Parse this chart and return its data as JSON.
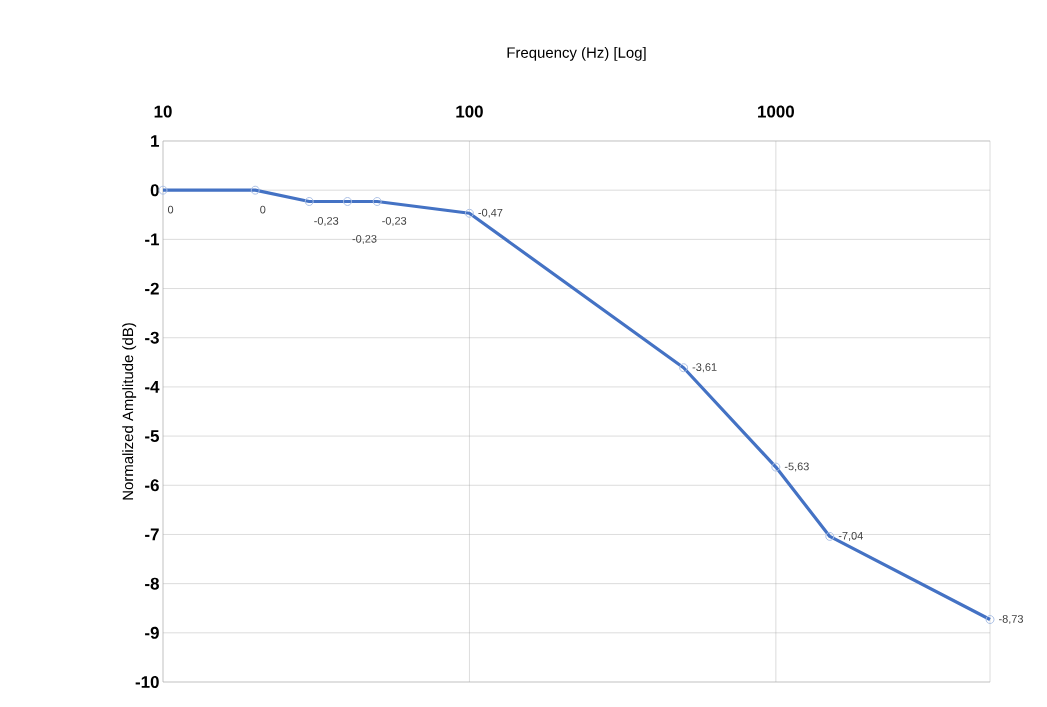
{
  "chart_data": {
    "type": "line",
    "xlabel": "Frequency  (Hz) [Log]",
    "ylabel": "Normalized  Amplitude (dB)",
    "x": [
      10,
      20,
      30,
      40,
      50,
      100,
      500,
      1000,
      1500,
      5000
    ],
    "series": [
      {
        "color": "#4472c4",
        "values": [
          0,
          0,
          -0.23,
          -0.23,
          -0.23,
          -0.47,
          -3.61,
          -5.63,
          -7.04,
          -8.73
        ],
        "value_labels": [
          "0",
          "0",
          "-0,23",
          "-0,23",
          "-0,23",
          "-0,47",
          "-3,61",
          "-5,63",
          "-7,04",
          "-8,73"
        ]
      }
    ],
    "log": "x",
    "xlim": [
      10,
      5000
    ],
    "ylim": [
      -10,
      1
    ],
    "xticks": [
      10,
      100,
      1000
    ],
    "yticks": [
      1,
      0,
      -1,
      -2,
      -3,
      -4,
      -5,
      -6,
      -7,
      -8,
      -9,
      -10
    ],
    "grid": true,
    "marker": "circle",
    "line_style": "solid"
  }
}
